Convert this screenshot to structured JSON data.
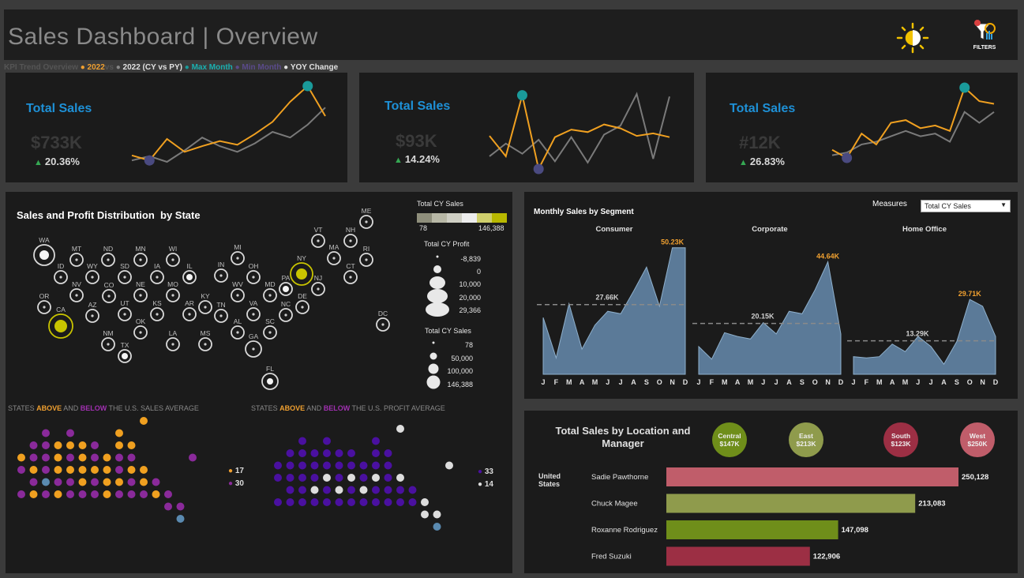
{
  "header": {
    "title": "Sales Dashboard | Overview",
    "filters_label": "FILTERS"
  },
  "kpi_legend": {
    "prefix": "KPI Trend Overview",
    "cy": "2022",
    "vs": "vs",
    "py": "2022 (CY vs PY)",
    "max": "Max Month",
    "min": "Min Month",
    "yoy": "YOY Change"
  },
  "kpis": [
    {
      "title": "Total Sales",
      "value": "$733K",
      "change": "20.36%"
    },
    {
      "title": "Total Sales",
      "value": "$93K",
      "change": "14.24%"
    },
    {
      "title": "Total Sales",
      "value": "#12K",
      "change": "26.83%"
    }
  ],
  "map": {
    "title": "Sales and Profit Distribution  by State",
    "legend_sales_title": "Total CY Sales",
    "legend_sales_min": "78",
    "legend_sales_max": "146,388",
    "legend_profit_title": "Total CY Profit",
    "legend_profit_values": [
      "-8,839",
      "0",
      "10,000",
      "20,000",
      "29,366"
    ],
    "legend_size_title": "Total CY Sales",
    "legend_size_values": [
      "78",
      "50,000",
      "100,000",
      "146,388"
    ],
    "states": [
      "ME",
      "VT",
      "NH",
      "WA",
      "MT",
      "ND",
      "MN",
      "WI",
      "MI",
      "NY",
      "MA",
      "RI",
      "ID",
      "WY",
      "SD",
      "IA",
      "IL",
      "IN",
      "OH",
      "PA",
      "NJ",
      "CT",
      "OR",
      "NV",
      "CO",
      "NE",
      "MO",
      "KY",
      "WV",
      "MD",
      "DE",
      "CA",
      "AZ",
      "UT",
      "KS",
      "AR",
      "TN",
      "VA",
      "NC",
      "DC",
      "NM",
      "OK",
      "LA",
      "MS",
      "AL",
      "SC",
      "TX",
      "GA",
      "FL"
    ]
  },
  "above_below": {
    "sales_title": {
      "pre": "STATES ",
      "above": "ABOVE",
      "mid": " AND ",
      "below": "BELOW",
      "post": " THE U.S. SALES AVERAGE"
    },
    "profit_title": {
      "pre": "STATES ",
      "above": "ABOVE",
      "mid": " AND ",
      "below": "BELOW",
      "post": " THE U.S. PROFIT AVERAGE"
    },
    "sales_counts": {
      "above": "17",
      "below": "30"
    },
    "profit_counts": {
      "above": "33",
      "below": "14"
    }
  },
  "segment": {
    "title": "Monthly Sales by Segment",
    "measures_label": "Measures",
    "measures_value": "Total CY Sales",
    "months": [
      "J",
      "F",
      "M",
      "A",
      "M",
      "J",
      "J",
      "A",
      "S",
      "O",
      "N",
      "D"
    ],
    "colors": {
      "area": "#5b7a98",
      "max": "#f0a030"
    }
  },
  "location": {
    "title": "Total Sales by Location and Manager",
    "country": "United States",
    "regions": [
      {
        "name": "Central",
        "value": "$147K",
        "color": "#6f8e1a"
      },
      {
        "name": "East",
        "value": "$213K",
        "color": "#8f9b4c"
      },
      {
        "name": "South",
        "value": "$123K",
        "color": "#9c2f44"
      },
      {
        "name": "West",
        "value": "$250K",
        "color": "#c05d6a"
      }
    ],
    "managers": [
      {
        "name": "Sadie Pawthorne",
        "value": "250,128"
      },
      {
        "name": "Chuck Magee",
        "value": "213,083"
      },
      {
        "name": "Roxanne Rodriguez",
        "value": "147,098"
      },
      {
        "name": "Fred Suzuki",
        "value": "122,906"
      }
    ]
  },
  "chart_data": [
    {
      "type": "line",
      "title": "Total Sales",
      "x": [
        1,
        2,
        3,
        4,
        5,
        6,
        7,
        8,
        9,
        10,
        11,
        12
      ],
      "series": [
        {
          "name": "2022",
          "values": [
            25,
            18,
            48,
            30,
            38,
            45,
            40,
            55,
            72,
            100,
            122,
            80
          ]
        },
        {
          "name": "PY",
          "values": [
            18,
            24,
            16,
            32,
            50,
            38,
            30,
            42,
            58,
            50,
            68,
            92
          ]
        }
      ]
    },
    {
      "type": "line",
      "title": "Total Sales",
      "x": [
        1,
        2,
        3,
        4,
        5,
        6,
        7,
        8,
        9,
        10,
        11,
        12
      ],
      "series": [
        {
          "name": "2022",
          "values": [
            7.2,
            4.0,
            13.6,
            2.0,
            7.0,
            8.2,
            7.8,
            9.0,
            8.4,
            7.2,
            7.6,
            7.0
          ]
        },
        {
          "name": "PY",
          "values": [
            4.0,
            6.0,
            4.4,
            6.6,
            3.2,
            7.0,
            3.0,
            7.4,
            8.8,
            13.8,
            3.6,
            13.4
          ]
        }
      ]
    },
    {
      "type": "line",
      "title": "Total Sales",
      "x": [
        1,
        2,
        3,
        4,
        5,
        6,
        7,
        8,
        9,
        10,
        11,
        12
      ],
      "series": [
        {
          "name": "2022",
          "values": [
            0.8,
            0.5,
            1.4,
            1.0,
            1.8,
            1.9,
            1.6,
            1.7,
            1.5,
            3.1,
            2.6,
            2.5
          ]
        },
        {
          "name": "PY",
          "values": [
            0.6,
            0.7,
            1.0,
            1.1,
            1.3,
            1.5,
            1.3,
            1.4,
            1.1,
            2.2,
            1.8,
            2.2
          ]
        }
      ]
    },
    {
      "type": "area",
      "title": "Consumer",
      "categories": [
        "J",
        "F",
        "M",
        "A",
        "M",
        "J",
        "J",
        "A",
        "S",
        "O",
        "N",
        "D"
      ],
      "values": [
        22.5,
        6.5,
        28,
        10,
        19.5,
        25,
        24,
        33,
        42.5,
        27,
        50.23,
        50.23
      ],
      "average": 27.66,
      "avg_label": "27.66K",
      "max_label": "50.23K",
      "ylim": [
        0,
        52
      ]
    },
    {
      "type": "area",
      "title": "Corporate",
      "categories": [
        "J",
        "F",
        "M",
        "A",
        "M",
        "J",
        "J",
        "A",
        "S",
        "O",
        "N",
        "D"
      ],
      "values": [
        11,
        6,
        16.5,
        15,
        14,
        20.5,
        16,
        25,
        24,
        33.5,
        44.64,
        16
      ],
      "average": 20.15,
      "avg_label": "20.15K",
      "max_label": "44.64K",
      "ylim": [
        0,
        52
      ]
    },
    {
      "type": "area",
      "title": "Home Office",
      "categories": [
        "J",
        "F",
        "M",
        "A",
        "M",
        "J",
        "J",
        "A",
        "S",
        "O",
        "N",
        "D"
      ],
      "values": [
        7,
        6.5,
        7,
        12,
        9,
        15,
        11,
        4,
        13,
        29.71,
        27,
        15
      ],
      "average": 13.29,
      "avg_label": "13.29K",
      "max_label": "29.71K",
      "ylim": [
        0,
        52
      ]
    },
    {
      "type": "bar",
      "title": "Total Sales by Location and Manager",
      "categories": [
        "Sadie Pawthorne",
        "Chuck Magee",
        "Roxanne Rodriguez",
        "Fred Suzuki"
      ],
      "values": [
        250128,
        213083,
        147098,
        122906
      ],
      "xlim": [
        0,
        250128
      ]
    }
  ]
}
